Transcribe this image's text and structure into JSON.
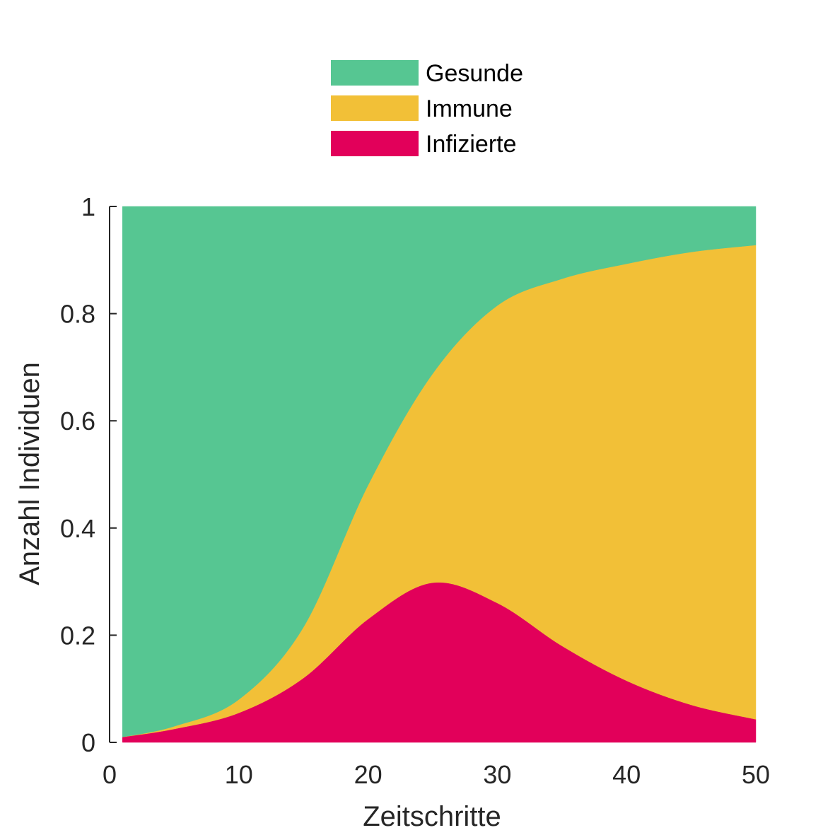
{
  "chart_data": {
    "type": "area",
    "stacked": true,
    "title": "",
    "xlabel": "Zeitschritte",
    "ylabel": "Anzahl Individuen",
    "xlim": [
      0,
      50
    ],
    "ylim": [
      0,
      1
    ],
    "grid": false,
    "legend_position": "top-center",
    "x_ticks": [
      "0",
      "10",
      "20",
      "30",
      "40",
      "50"
    ],
    "y_ticks": [
      "0",
      "0.2",
      "0.4",
      "0.6",
      "0.8",
      "1"
    ],
    "x": [
      1,
      5,
      10,
      15,
      20,
      25,
      30,
      35,
      40,
      45,
      50
    ],
    "series": [
      {
        "name": "Infizierte",
        "color": "#E2005A",
        "values": [
          0.01,
          0.025,
          0.055,
          0.12,
          0.23,
          0.298,
          0.26,
          0.18,
          0.115,
          0.07,
          0.043
        ]
      },
      {
        "name": "Immune",
        "color": "#F2C037",
        "values": [
          0.0,
          0.005,
          0.025,
          0.095,
          0.25,
          0.39,
          0.555,
          0.685,
          0.778,
          0.845,
          0.885
        ]
      },
      {
        "name": "Gesunde",
        "color": "#56C692",
        "values": [
          0.99,
          0.97,
          0.92,
          0.785,
          0.52,
          0.312,
          0.185,
          0.135,
          0.107,
          0.085,
          0.072
        ]
      }
    ],
    "legend": [
      {
        "name": "Gesunde",
        "color": "#56C692"
      },
      {
        "name": "Immune",
        "color": "#F2C037"
      },
      {
        "name": "Infizierte",
        "color": "#E2005A"
      }
    ]
  }
}
